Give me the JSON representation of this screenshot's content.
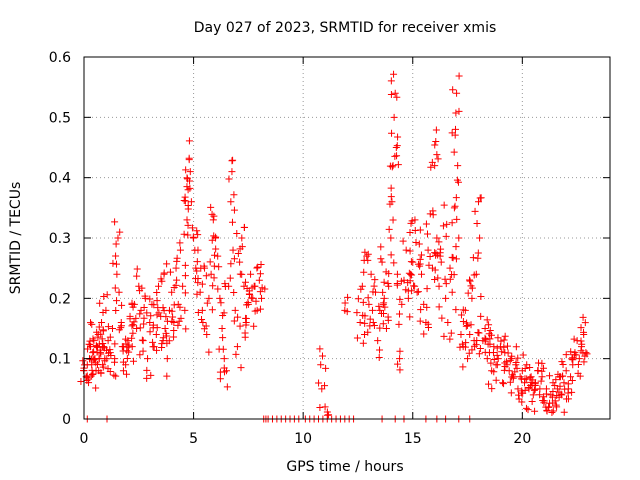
{
  "chart_data": {
    "type": "scatter",
    "title": "Day 027 of 2023, SRMTID for receiver xmis",
    "xlabel": "GPS time / hours",
    "ylabel": "SRMTID / TECUs",
    "xlim": [
      0,
      24
    ],
    "ylim": [
      0,
      0.6
    ],
    "xticks": [
      0,
      5,
      10,
      15,
      20
    ],
    "yticks": [
      0,
      0.1,
      0.2,
      0.3,
      0.4,
      0.5,
      0.6
    ],
    "xtick_labels": [
      "0",
      "5",
      "10",
      "15",
      "20"
    ],
    "ytick_labels": [
      "0",
      "0.1",
      "0.2",
      "0.3",
      "0.4",
      "0.5",
      "0.6"
    ],
    "grid": true,
    "marker": "+",
    "color": "#ff0000",
    "series": [
      {
        "name": "SRMTID",
        "points": [
          [
            0.0,
            0.08
          ],
          [
            0.1,
            0.07
          ],
          [
            0.15,
            0.09
          ],
          [
            0.25,
            0.1
          ],
          [
            0.3,
            0.12
          ],
          [
            0.35,
            0.09
          ],
          [
            0.4,
            0.11
          ],
          [
            0.45,
            0.13
          ],
          [
            0.5,
            0.1
          ],
          [
            0.55,
            0.08
          ],
          [
            0.6,
            0.12
          ],
          [
            0.65,
            0.14
          ],
          [
            0.7,
            0.1
          ],
          [
            0.75,
            0.11
          ],
          [
            0.8,
            0.16
          ],
          [
            0.85,
            0.09
          ],
          [
            0.9,
            0.12
          ],
          [
            0.95,
            0.1
          ],
          [
            1.0,
            0.18
          ],
          [
            1.1,
            0.13
          ],
          [
            1.2,
            0.11
          ],
          [
            1.3,
            0.15
          ],
          [
            1.4,
            0.1
          ],
          [
            1.5,
            0.24
          ],
          [
            1.55,
            0.3
          ],
          [
            1.6,
            0.21
          ],
          [
            1.7,
            0.16
          ],
          [
            1.75,
            0.12
          ],
          [
            1.8,
            0.08
          ],
          [
            1.9,
            0.09
          ],
          [
            2.0,
            0.13
          ],
          [
            2.1,
            0.17
          ],
          [
            2.2,
            0.12
          ],
          [
            2.3,
            0.19
          ],
          [
            2.4,
            0.15
          ],
          [
            2.5,
            0.22
          ],
          [
            2.6,
            0.18
          ],
          [
            2.7,
            0.13
          ],
          [
            2.8,
            0.2
          ],
          [
            2.9,
            0.1
          ],
          [
            3.0,
            0.16
          ],
          [
            3.1,
            0.19
          ],
          [
            3.2,
            0.12
          ],
          [
            3.3,
            0.14
          ],
          [
            3.4,
            0.22
          ],
          [
            3.5,
            0.17
          ],
          [
            3.6,
            0.13
          ],
          [
            3.65,
            0.24
          ],
          [
            3.7,
            0.15
          ],
          [
            3.8,
            0.1
          ],
          [
            3.9,
            0.18
          ],
          [
            4.0,
            0.21
          ],
          [
            4.1,
            0.16
          ],
          [
            4.2,
            0.25
          ],
          [
            4.3,
            0.19
          ],
          [
            4.4,
            0.28
          ],
          [
            4.5,
            0.22
          ],
          [
            4.6,
            0.18
          ],
          [
            4.7,
            0.33
          ],
          [
            4.75,
            0.38
          ],
          [
            4.8,
            0.43
          ],
          [
            4.85,
            0.41
          ],
          [
            4.9,
            0.36
          ],
          [
            5.0,
            0.3
          ],
          [
            5.1,
            0.25
          ],
          [
            5.2,
            0.28
          ],
          [
            5.3,
            0.21
          ],
          [
            5.4,
            0.18
          ],
          [
            5.5,
            0.25
          ],
          [
            5.6,
            0.14
          ],
          [
            5.7,
            0.2
          ],
          [
            5.8,
            0.24
          ],
          [
            5.9,
            0.33
          ],
          [
            6.0,
            0.3
          ],
          [
            6.1,
            0.27
          ],
          [
            6.2,
            0.2
          ],
          [
            6.3,
            0.15
          ],
          [
            6.4,
            0.1
          ],
          [
            6.5,
            0.08
          ],
          [
            6.6,
            0.22
          ],
          [
            6.7,
            0.36
          ],
          [
            6.75,
            0.41
          ],
          [
            6.8,
            0.28
          ],
          [
            6.9,
            0.18
          ],
          [
            7.0,
            0.12
          ],
          [
            7.1,
            0.26
          ],
          [
            7.2,
            0.3
          ],
          [
            7.3,
            0.22
          ],
          [
            7.4,
            0.16
          ],
          [
            7.5,
            0.19
          ],
          [
            7.6,
            0.24
          ],
          [
            7.7,
            0.2
          ],
          [
            7.8,
            0.22
          ],
          [
            7.9,
            0.18
          ],
          [
            8.0,
            0.23
          ],
          [
            8.1,
            0.2
          ],
          [
            10.8,
            0.09
          ],
          [
            10.85,
            0.05
          ],
          [
            11.0,
            0.02
          ],
          [
            11.9,
            0.18
          ],
          [
            12.6,
            0.16
          ],
          [
            12.7,
            0.22
          ],
          [
            12.8,
            0.14
          ],
          [
            12.9,
            0.27
          ],
          [
            13.0,
            0.19
          ],
          [
            13.1,
            0.24
          ],
          [
            13.2,
            0.16
          ],
          [
            13.3,
            0.21
          ],
          [
            13.4,
            0.13
          ],
          [
            13.5,
            0.18
          ],
          [
            13.6,
            0.26
          ],
          [
            13.7,
            0.2
          ],
          [
            13.8,
            0.15
          ],
          [
            13.9,
            0.22
          ],
          [
            14.0,
            0.3
          ],
          [
            14.05,
            0.36
          ],
          [
            14.1,
            0.42
          ],
          [
            14.15,
            0.5
          ],
          [
            14.2,
            0.54
          ],
          [
            14.25,
            0.45
          ],
          [
            14.3,
            0.24
          ],
          [
            14.4,
            0.1
          ],
          [
            14.5,
            0.19
          ],
          [
            14.6,
            0.23
          ],
          [
            14.7,
            0.28
          ],
          [
            14.8,
            0.2
          ],
          [
            14.9,
            0.24
          ],
          [
            15.0,
            0.26
          ],
          [
            15.1,
            0.33
          ],
          [
            15.2,
            0.21
          ],
          [
            15.3,
            0.29
          ],
          [
            15.4,
            0.24
          ],
          [
            15.5,
            0.19
          ],
          [
            15.6,
            0.16
          ],
          [
            15.7,
            0.28
          ],
          [
            15.8,
            0.34
          ],
          [
            15.9,
            0.25
          ],
          [
            16.0,
            0.42
          ],
          [
            16.05,
            0.46
          ],
          [
            16.1,
            0.3
          ],
          [
            16.2,
            0.22
          ],
          [
            16.3,
            0.26
          ],
          [
            16.4,
            0.32
          ],
          [
            16.5,
            0.2
          ],
          [
            16.6,
            0.16
          ],
          [
            16.7,
            0.25
          ],
          [
            16.8,
            0.21
          ],
          [
            16.9,
            0.35
          ],
          [
            16.95,
            0.48
          ],
          [
            17.0,
            0.54
          ],
          [
            17.05,
            0.42
          ],
          [
            17.1,
            0.3
          ],
          [
            17.2,
            0.14
          ],
          [
            17.3,
            0.12
          ],
          [
            17.4,
            0.18
          ],
          [
            17.5,
            0.1
          ],
          [
            17.6,
            0.14
          ],
          [
            17.7,
            0.2
          ],
          [
            17.8,
            0.13
          ],
          [
            17.9,
            0.24
          ],
          [
            18.0,
            0.36
          ],
          [
            18.05,
            0.3
          ],
          [
            18.1,
            0.17
          ],
          [
            18.2,
            0.13
          ],
          [
            18.3,
            0.15
          ],
          [
            18.4,
            0.1
          ],
          [
            18.5,
            0.11
          ],
          [
            18.6,
            0.08
          ],
          [
            18.7,
            0.12
          ],
          [
            18.8,
            0.09
          ],
          [
            18.9,
            0.1
          ],
          [
            19.0,
            0.12
          ],
          [
            19.1,
            0.06
          ],
          [
            19.2,
            0.11
          ],
          [
            19.3,
            0.09
          ],
          [
            19.4,
            0.08
          ],
          [
            19.5,
            0.1
          ],
          [
            19.6,
            0.07
          ],
          [
            19.7,
            0.09
          ],
          [
            19.8,
            0.05
          ],
          [
            19.9,
            0.07
          ],
          [
            20.0,
            0.08
          ],
          [
            20.1,
            0.06
          ],
          [
            20.2,
            0.09
          ],
          [
            20.3,
            0.05
          ],
          [
            20.4,
            0.07
          ],
          [
            20.5,
            0.04
          ],
          [
            20.6,
            0.06
          ],
          [
            20.7,
            0.08
          ],
          [
            20.8,
            0.05
          ],
          [
            20.9,
            0.07
          ],
          [
            21.0,
            0.03
          ],
          [
            21.1,
            0.05
          ],
          [
            21.2,
            0.02
          ],
          [
            21.3,
            0.04
          ],
          [
            21.4,
            0.06
          ],
          [
            21.5,
            0.03
          ],
          [
            21.6,
            0.05
          ],
          [
            21.7,
            0.07
          ],
          [
            21.8,
            0.04
          ],
          [
            21.9,
            0.06
          ],
          [
            22.0,
            0.08
          ],
          [
            22.1,
            0.05
          ],
          [
            22.2,
            0.07
          ],
          [
            22.3,
            0.09
          ],
          [
            22.4,
            0.11
          ],
          [
            22.5,
            0.13
          ],
          [
            22.6,
            0.1
          ],
          [
            22.7,
            0.12
          ],
          [
            22.8,
            0.14
          ],
          [
            22.9,
            0.11
          ]
        ],
        "zero_points_x": [
          0.15,
          1.05,
          8.2,
          8.3,
          8.4,
          8.6,
          8.8,
          9.0,
          9.2,
          9.4,
          9.6,
          9.8,
          10.1,
          10.3,
          10.5,
          10.7,
          10.9,
          11.1,
          11.3,
          11.5,
          11.7,
          11.9,
          12.1,
          12.3,
          13.6,
          14.2,
          14.6,
          15.6,
          16.1,
          16.5,
          17.1,
          17.6
        ]
      }
    ]
  }
}
